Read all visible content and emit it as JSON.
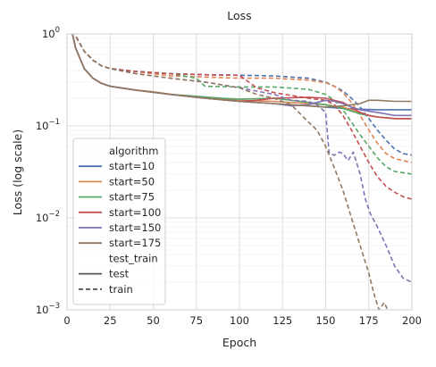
{
  "chart_data": {
    "type": "line",
    "title": "Loss",
    "xlabel": "Epoch",
    "ylabel": "Loss (log scale)",
    "xlim": [
      0,
      200
    ],
    "ylim": [
      0.001,
      1
    ],
    "yscale": "log",
    "grid": true,
    "legend_position": "lower-left",
    "x_ticks": [
      "0",
      "25",
      "50",
      "75",
      "100",
      "125",
      "150",
      "175",
      "200"
    ],
    "y_ticks": [
      "10^0",
      "10^-1",
      "10^-2",
      "10^-3"
    ],
    "legend": {
      "hue_title": "algorithm",
      "style_title": "test_train",
      "style_entries": [
        {
          "name": "test",
          "dash": "solid"
        },
        {
          "name": "train",
          "dash": "dashed"
        }
      ]
    },
    "series": [
      {
        "name": "start=10",
        "color": "#4c72b0",
        "test": {
          "x": [
            0,
            5,
            10,
            15,
            20,
            25,
            40,
            60,
            80,
            100,
            120,
            140,
            150,
            160,
            170,
            180,
            190,
            200
          ],
          "y": [
            1.8,
            0.7,
            0.42,
            0.33,
            0.29,
            0.27,
            0.245,
            0.22,
            0.2,
            0.185,
            0.175,
            0.165,
            0.16,
            0.155,
            0.152,
            0.15,
            0.15,
            0.15
          ]
        },
        "train": {
          "x": [
            0,
            5,
            10,
            15,
            20,
            25,
            40,
            60,
            80,
            100,
            120,
            140,
            150,
            155,
            160,
            165,
            170,
            175,
            180,
            185,
            190,
            195,
            200
          ],
          "y": [
            2.2,
            0.95,
            0.65,
            0.52,
            0.45,
            0.42,
            0.39,
            0.37,
            0.36,
            0.355,
            0.35,
            0.33,
            0.3,
            0.27,
            0.24,
            0.2,
            0.16,
            0.12,
            0.09,
            0.07,
            0.056,
            0.05,
            0.048
          ]
        }
      },
      {
        "name": "start=50",
        "color": "#dd8452",
        "test": {
          "x": [
            0,
            5,
            10,
            15,
            20,
            25,
            40,
            50,
            60,
            80,
            100,
            120,
            140,
            150,
            160,
            165,
            170,
            175,
            180,
            190,
            200
          ],
          "y": [
            1.8,
            0.7,
            0.42,
            0.33,
            0.29,
            0.27,
            0.245,
            0.235,
            0.22,
            0.2,
            0.19,
            0.185,
            0.175,
            0.17,
            0.16,
            0.15,
            0.14,
            0.13,
            0.125,
            0.12,
            0.12
          ]
        },
        "train": {
          "x": [
            0,
            5,
            10,
            15,
            20,
            25,
            40,
            50,
            60,
            80,
            100,
            120,
            140,
            150,
            155,
            160,
            165,
            170,
            175,
            180,
            185,
            190,
            200
          ],
          "y": [
            2.2,
            0.95,
            0.65,
            0.52,
            0.45,
            0.42,
            0.39,
            0.37,
            0.35,
            0.34,
            0.33,
            0.33,
            0.315,
            0.295,
            0.27,
            0.23,
            0.18,
            0.13,
            0.09,
            0.065,
            0.05,
            0.044,
            0.04
          ]
        }
      },
      {
        "name": "start=75",
        "color": "#55a868",
        "test": {
          "x": [
            0,
            5,
            10,
            15,
            20,
            25,
            40,
            60,
            75,
            90,
            100,
            120,
            140,
            150,
            160,
            170,
            175,
            180,
            190,
            200
          ],
          "y": [
            1.8,
            0.7,
            0.42,
            0.33,
            0.29,
            0.27,
            0.245,
            0.22,
            0.21,
            0.2,
            0.195,
            0.2,
            0.18,
            0.17,
            0.155,
            0.135,
            0.13,
            0.125,
            0.12,
            0.12
          ]
        },
        "train": {
          "x": [
            0,
            5,
            10,
            15,
            20,
            25,
            40,
            60,
            75,
            80,
            100,
            120,
            140,
            150,
            155,
            160,
            165,
            170,
            175,
            180,
            185,
            190,
            200
          ],
          "y": [
            2.2,
            0.95,
            0.65,
            0.52,
            0.45,
            0.42,
            0.39,
            0.37,
            0.33,
            0.27,
            0.265,
            0.265,
            0.25,
            0.22,
            0.19,
            0.15,
            0.11,
            0.08,
            0.06,
            0.045,
            0.036,
            0.032,
            0.03
          ]
        }
      },
      {
        "name": "start=100",
        "color": "#c44e52",
        "test": {
          "x": [
            0,
            5,
            10,
            15,
            20,
            25,
            40,
            60,
            80,
            100,
            110,
            120,
            140,
            150,
            160,
            165,
            170,
            175,
            180,
            190,
            200
          ],
          "y": [
            1.8,
            0.7,
            0.42,
            0.33,
            0.29,
            0.27,
            0.245,
            0.22,
            0.2,
            0.185,
            0.19,
            0.2,
            0.205,
            0.2,
            0.18,
            0.16,
            0.14,
            0.13,
            0.125,
            0.12,
            0.12
          ]
        },
        "train": {
          "x": [
            0,
            5,
            10,
            15,
            20,
            25,
            40,
            60,
            80,
            100,
            110,
            120,
            140,
            150,
            155,
            160,
            165,
            170,
            175,
            180,
            185,
            190,
            195,
            200
          ],
          "y": [
            2.2,
            0.95,
            0.65,
            0.52,
            0.45,
            0.42,
            0.39,
            0.37,
            0.36,
            0.355,
            0.26,
            0.23,
            0.2,
            0.19,
            0.17,
            0.13,
            0.09,
            0.06,
            0.04,
            0.028,
            0.022,
            0.019,
            0.017,
            0.016
          ]
        }
      },
      {
        "name": "start=150",
        "color": "#8172b3",
        "test": {
          "x": [
            0,
            5,
            10,
            15,
            20,
            25,
            40,
            60,
            80,
            100,
            120,
            130,
            140,
            145,
            150,
            155,
            160,
            165,
            170,
            175,
            180,
            185,
            190,
            200
          ],
          "y": [
            1.8,
            0.7,
            0.42,
            0.33,
            0.29,
            0.27,
            0.245,
            0.22,
            0.2,
            0.185,
            0.175,
            0.165,
            0.17,
            0.18,
            0.19,
            0.185,
            0.175,
            0.16,
            0.15,
            0.145,
            0.14,
            0.135,
            0.13,
            0.13
          ]
        },
        "train": {
          "x": [
            0,
            5,
            10,
            15,
            20,
            25,
            40,
            60,
            80,
            100,
            120,
            130,
            140,
            145,
            150,
            152,
            155,
            158,
            160,
            163,
            166,
            170,
            173,
            176,
            180,
            185,
            190,
            195,
            200
          ],
          "y": [
            2.2,
            0.95,
            0.65,
            0.52,
            0.45,
            0.42,
            0.37,
            0.33,
            0.3,
            0.26,
            0.22,
            0.19,
            0.185,
            0.17,
            0.14,
            0.05,
            0.048,
            0.052,
            0.05,
            0.042,
            0.052,
            0.03,
            0.016,
            0.011,
            0.008,
            0.005,
            0.003,
            0.0022,
            0.002
          ]
        }
      },
      {
        "name": "start=175",
        "color": "#937860",
        "test": {
          "x": [
            0,
            5,
            10,
            15,
            20,
            25,
            40,
            60,
            80,
            100,
            120,
            140,
            150,
            160,
            170,
            175,
            180,
            190,
            200
          ],
          "y": [
            1.8,
            0.7,
            0.42,
            0.33,
            0.29,
            0.27,
            0.245,
            0.22,
            0.2,
            0.185,
            0.175,
            0.165,
            0.16,
            0.165,
            0.175,
            0.19,
            0.19,
            0.185,
            0.185
          ]
        },
        "train": {
          "x": [
            0,
            5,
            10,
            15,
            20,
            25,
            40,
            60,
            80,
            100,
            110,
            120,
            130,
            140,
            145,
            150,
            155,
            160,
            165,
            170,
            175,
            178,
            181,
            184,
            187,
            190
          ],
          "y": [
            2.2,
            0.95,
            0.65,
            0.52,
            0.45,
            0.42,
            0.37,
            0.33,
            0.3,
            0.26,
            0.22,
            0.2,
            0.17,
            0.11,
            0.09,
            0.06,
            0.035,
            0.02,
            0.01,
            0.005,
            0.0025,
            0.0015,
            0.001,
            0.0012,
            0.0009,
            0.0008
          ]
        }
      }
    ]
  }
}
